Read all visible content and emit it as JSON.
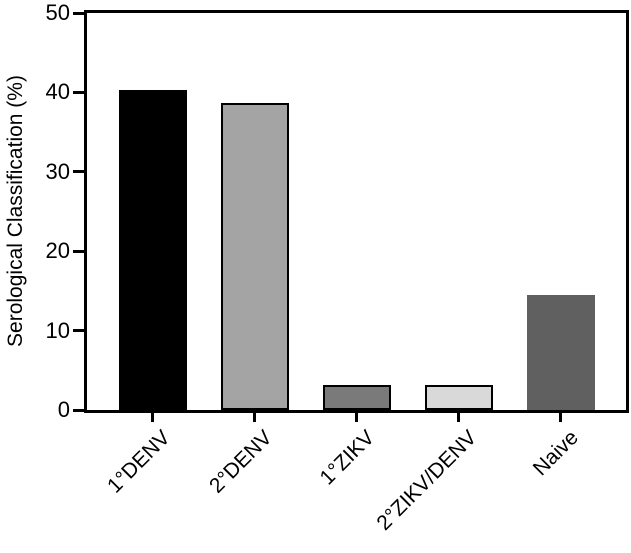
{
  "chart_data": {
    "type": "bar",
    "title": "",
    "xlabel": "",
    "ylabel": "Serological Classification (%)",
    "categories": [
      "1°DENV",
      "2°DENV",
      "1°ZIKV",
      "2°ZIKV/DENV",
      "Naive"
    ],
    "values": [
      40.3,
      38.7,
      3.1,
      3.1,
      14.5
    ],
    "bar_fill_colors": [
      "#000000",
      "#a4a4a4",
      "#7a7a7a",
      "#d9d9d9",
      "#606060"
    ],
    "bar_border_colors": [
      "#000000",
      "#000000",
      "#000000",
      "#000000",
      null
    ],
    "ylim": [
      0,
      50
    ],
    "yticks": [
      0,
      10,
      20,
      30,
      40,
      50
    ],
    "grid": false,
    "legend": "none",
    "frame": "full-box",
    "axis_color": "#000000",
    "background_color": "#ffffff"
  }
}
